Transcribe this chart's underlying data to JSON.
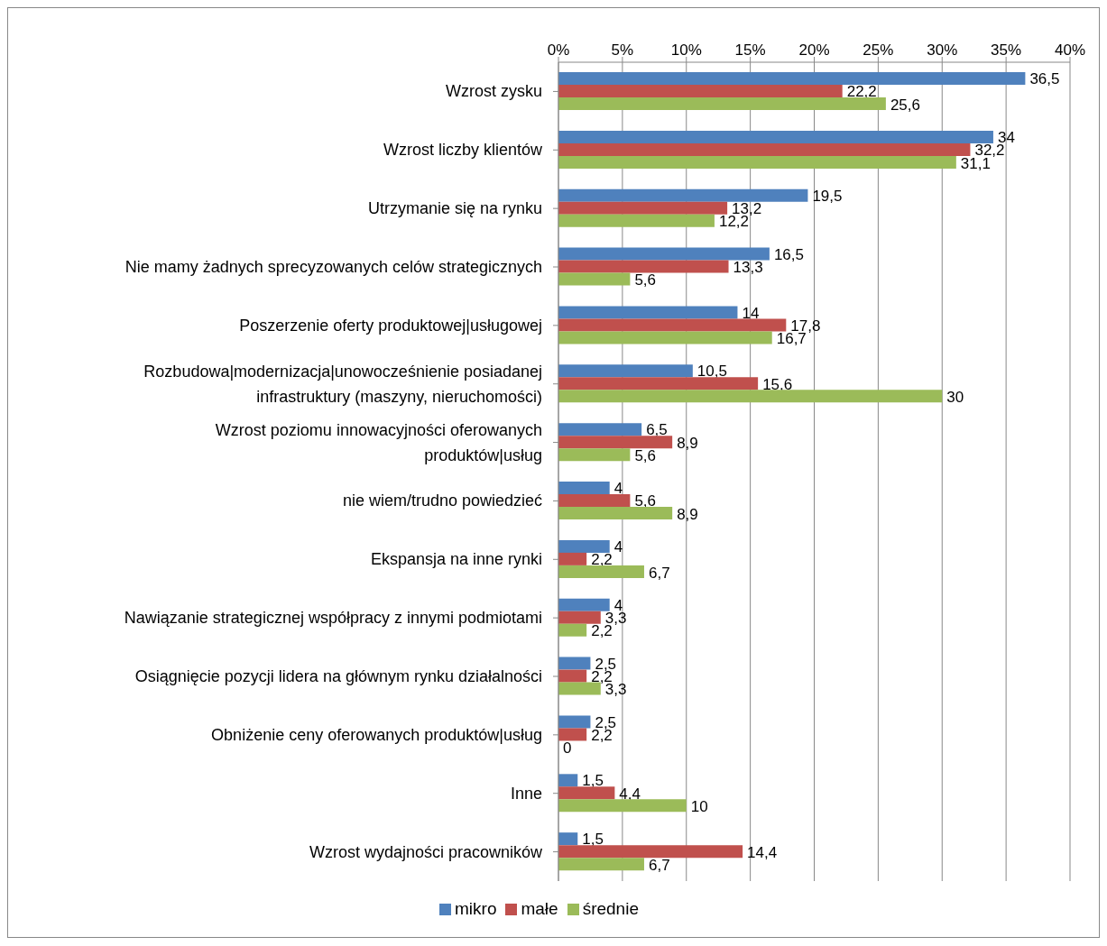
{
  "chart_data": {
    "type": "bar",
    "orientation": "horizontal",
    "categories": [
      "Wzrost zysku",
      "Wzrost liczby klientów",
      "Utrzymanie się na rynku",
      "Nie mamy żadnych sprecyzowanych celów strategicznych",
      "Poszerzenie oferty produktowej|usługowej",
      "Rozbudowa|modernizacja|unowocześnienie posiadanej infrastruktury (maszyny, nieruchomości)",
      "Wzrost poziomu innowacyjności oferowanych produktów|usług",
      "nie wiem/trudno powiedzieć",
      "Ekspansja na inne rynki",
      "Nawiązanie strategicznej współpracy z innymi podmiotami",
      "Osiągnięcie pozycji lidera na głównym rynku działalności",
      "Obniżenie ceny oferowanych produktów|usług",
      "Inne",
      "Wzrost wydajności pracowników"
    ],
    "series": [
      {
        "name": "mikro",
        "color": "#4f81bd",
        "values": [
          36.5,
          34,
          19.5,
          16.5,
          14,
          10.5,
          6.5,
          4,
          4,
          4,
          2.5,
          2.5,
          1.5,
          1.5
        ],
        "value_labels": [
          "36,5",
          "34",
          "19,5",
          "16,5",
          "14",
          "10,5",
          "6,5",
          "4",
          "4",
          "4",
          "2,5",
          "2,5",
          "1,5",
          "1,5"
        ]
      },
      {
        "name": "małe",
        "color": "#c0504d",
        "values": [
          22.2,
          32.2,
          13.2,
          13.3,
          17.8,
          15.6,
          8.9,
          5.6,
          2.2,
          3.3,
          2.2,
          2.2,
          4.4,
          14.4
        ],
        "value_labels": [
          "22,2",
          "32,2",
          "13,2",
          "13,3",
          "17,8",
          "15,6",
          "8,9",
          "5,6",
          "2,2",
          "3,3",
          "2,2",
          "2,2",
          "4,4",
          "14,4"
        ]
      },
      {
        "name": "średnie",
        "color": "#9bbb59",
        "values": [
          25.6,
          31.1,
          12.2,
          5.6,
          16.7,
          30,
          5.6,
          8.9,
          6.7,
          2.2,
          3.3,
          0,
          10,
          6.7
        ],
        "value_labels": [
          "25,6",
          "31,1",
          "12,2",
          "5,6",
          "16,7",
          "30",
          "5,6",
          "8,9",
          "6,7",
          "2,2",
          "3,3",
          "0",
          "10",
          "6,7"
        ]
      }
    ],
    "xlim": [
      0,
      40
    ],
    "xticks": [
      {
        "value": 0,
        "label": "0%"
      },
      {
        "value": 5,
        "label": "5%"
      },
      {
        "value": 10,
        "label": "10%"
      },
      {
        "value": 15,
        "label": "15%"
      },
      {
        "value": 20,
        "label": "20%"
      },
      {
        "value": 25,
        "label": "25%"
      },
      {
        "value": 30,
        "label": "30%"
      },
      {
        "value": 35,
        "label": "35%"
      },
      {
        "value": 40,
        "label": "40%"
      }
    ],
    "grid": "x",
    "legend": "bottom"
  }
}
